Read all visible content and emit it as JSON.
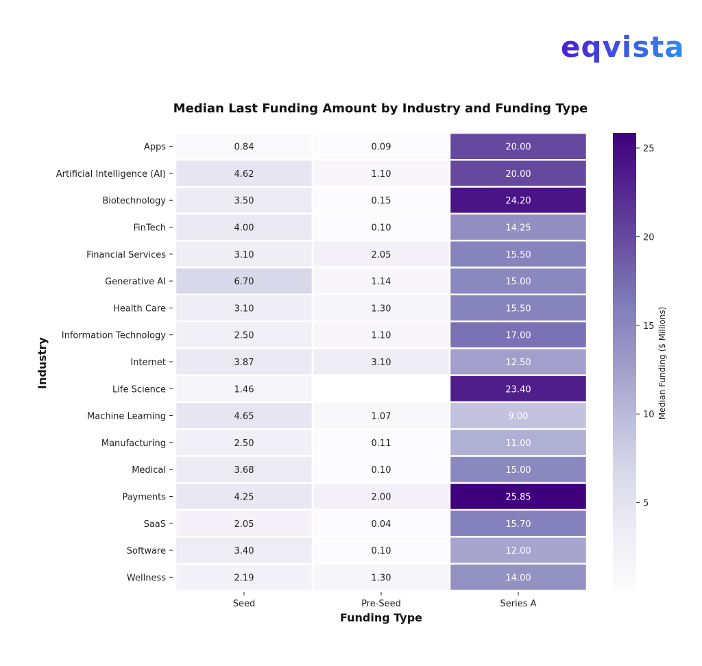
{
  "brand": {
    "logo_text": "eqvista",
    "colors": [
      "#4b1fd6",
      "#2f8ef0"
    ]
  },
  "chart_data": {
    "type": "heatmap",
    "title": "Median Last Funding Amount by Industry and Funding Type",
    "xlabel": "Funding Type",
    "ylabel": "Industry",
    "columns": [
      "Seed",
      "Pre-Seed",
      "Series A"
    ],
    "rows": [
      "Apps",
      "Artificial Intelligence (AI)",
      "Biotechnology",
      "FinTech",
      "Financial Services",
      "Generative AI",
      "Health Care",
      "Information Technology",
      "Internet",
      "Life Science",
      "Machine Learning",
      "Manufacturing",
      "Medical",
      "Payments",
      "SaaS",
      "Software",
      "Wellness"
    ],
    "values": [
      [
        0.84,
        0.09,
        20.0
      ],
      [
        4.62,
        1.1,
        20.0
      ],
      [
        3.5,
        0.15,
        24.2
      ],
      [
        4.0,
        0.1,
        14.25
      ],
      [
        3.1,
        2.05,
        15.5
      ],
      [
        6.7,
        1.14,
        15.0
      ],
      [
        3.1,
        1.3,
        15.5
      ],
      [
        2.5,
        1.1,
        17.0
      ],
      [
        3.87,
        3.1,
        12.5
      ],
      [
        1.46,
        null,
        23.4
      ],
      [
        4.65,
        1.07,
        9.0
      ],
      [
        2.5,
        0.11,
        11.0
      ],
      [
        3.68,
        0.1,
        15.0
      ],
      [
        4.25,
        2.0,
        25.85
      ],
      [
        2.05,
        0.04,
        15.7
      ],
      [
        3.4,
        0.1,
        12.0
      ],
      [
        2.19,
        1.3,
        14.0
      ]
    ],
    "colormap": "Purples",
    "colorbar": {
      "label": "Median Funding ($ Millions)",
      "ticks": [
        5,
        10,
        15,
        20,
        25
      ],
      "range": [
        0.04,
        25.85
      ]
    }
  }
}
